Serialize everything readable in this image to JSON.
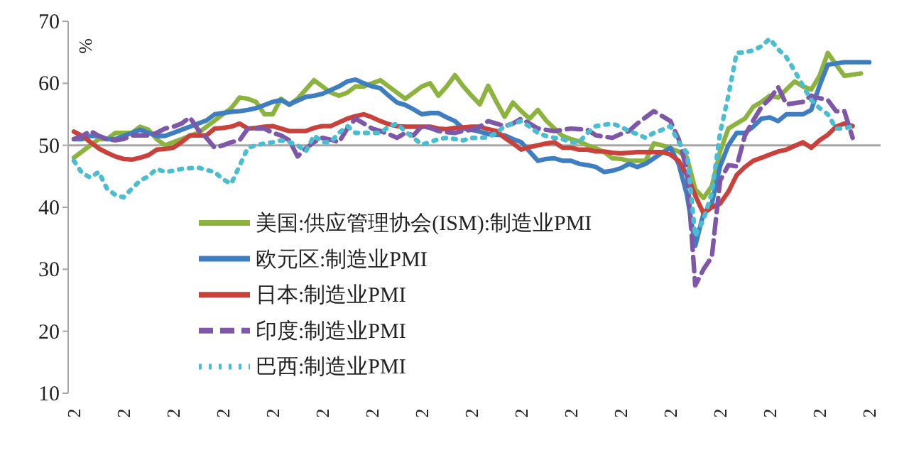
{
  "chart_data": {
    "type": "line",
    "ylabel": "%",
    "legend": "bottom left",
    "ylim": [
      10,
      70
    ],
    "yticks": [
      10,
      20,
      30,
      40,
      50,
      60,
      70
    ],
    "ref_lines": [
      {
        "axis": "y",
        "value": 50,
        "color": "#a6a6a6"
      }
    ],
    "categories": [
      "2",
      null,
      null,
      null,
      null,
      null,
      "2",
      null,
      null,
      null,
      null,
      null,
      "2",
      null,
      null,
      null,
      null,
      null,
      "2",
      null,
      null,
      null,
      null,
      null,
      "2",
      null,
      null,
      null,
      null,
      null,
      "2",
      null,
      null,
      null,
      null,
      null,
      "2",
      null,
      null,
      null,
      null,
      null,
      "2",
      null,
      null,
      null,
      null,
      null,
      "2",
      null,
      null,
      null,
      null,
      null,
      "2",
      null,
      null,
      null,
      null,
      null,
      "2",
      null,
      null,
      null,
      null,
      null,
      "2",
      null,
      null,
      null,
      null,
      null,
      "2",
      null,
      null,
      null,
      null,
      null,
      "2",
      null,
      null,
      null,
      null,
      null,
      "2",
      null,
      null,
      null,
      null,
      null,
      "2",
      null,
      null,
      null,
      null,
      null,
      "2"
    ],
    "series": [
      {
        "name": "美国:供应管理协会(ISM):制造业PMI",
        "color": "#8db33f",
        "line_style": "solid",
        "values": [
          48,
          49,
          50,
          51,
          51,
          52,
          52,
          52,
          53,
          52.5,
          51,
          50,
          50.5,
          51,
          51.5,
          52,
          53,
          54,
          55,
          56,
          57.7,
          57.5,
          57,
          55,
          55,
          57.5,
          56.5,
          57.5,
          59,
          60.5,
          59.5,
          58.5,
          58,
          58.5,
          59.5,
          59.5,
          60,
          60.5,
          59.5,
          58.5,
          57.5,
          58.5,
          59.5,
          60,
          58,
          59.5,
          61.3,
          59.5,
          58,
          56.6,
          59.6,
          57,
          54.6,
          56.9,
          55.5,
          54.3,
          55.7,
          54,
          52.7,
          51.5,
          51,
          50.6,
          50,
          49.5,
          48.9,
          47.9,
          47.8,
          47.5,
          47.5,
          47.5,
          50.3,
          50,
          49.5,
          49,
          48,
          42.9,
          41.5,
          43.4,
          49,
          52.7,
          53.5,
          54.3,
          56.2,
          57,
          58,
          57.7,
          59,
          60.3,
          59.5,
          59,
          61.2,
          64.9,
          63,
          61.2,
          61.4,
          61.6,
          null
        ]
      },
      {
        "name": "欧元区:制造业PMI",
        "color": "#3f7dc1",
        "line_style": "solid",
        "values": [
          51,
          51,
          51.5,
          51.5,
          51,
          51,
          51.5,
          52,
          52.5,
          52,
          51.5,
          51.5,
          52,
          52.5,
          53,
          53.5,
          54,
          55,
          55.2,
          55.4,
          55.5,
          55.7,
          56,
          56.5,
          57,
          57.3,
          56.6,
          57.2,
          57.8,
          58,
          58.3,
          58.9,
          59.5,
          60.3,
          60.6,
          60,
          59.5,
          59.2,
          58,
          56.9,
          56.5,
          55.8,
          55,
          55.2,
          55.2,
          54.5,
          53.9,
          52.7,
          52.5,
          52.2,
          51.8,
          51.7,
          51.6,
          51,
          50.5,
          49,
          47.5,
          47.8,
          47.9,
          47.5,
          47.5,
          47,
          46.8,
          46.5,
          45.7,
          45.9,
          46.3,
          47,
          46.5,
          47,
          47.9,
          48.8,
          49.6,
          47,
          42,
          33.8,
          39,
          40.6,
          46.6,
          50,
          52,
          52,
          53,
          54.3,
          54.5,
          53.9,
          55,
          55,
          55,
          55.7,
          59.6,
          63,
          63.2,
          63.4,
          63.4,
          63.4,
          63.4
        ]
      },
      {
        "name": "日本:制造业PMI",
        "color": "#c8413a",
        "line_style": "solid",
        "values": [
          52.2,
          51.5,
          50.5,
          49.5,
          48.8,
          48.2,
          47.8,
          47.7,
          48,
          48.4,
          49.3,
          49.4,
          49.6,
          50.5,
          51.6,
          51.6,
          51.6,
          52.7,
          52.8,
          53,
          53.5,
          52.7,
          52.8,
          53,
          53.1,
          52.7,
          52.3,
          52.3,
          52.3,
          52.8,
          53.1,
          53.1,
          53.7,
          54.3,
          54.7,
          55,
          54.5,
          53.9,
          53.4,
          53.1,
          53,
          53,
          53,
          53,
          52.7,
          52.6,
          52.8,
          52.9,
          53,
          53,
          52.6,
          52.3,
          51.2,
          50.3,
          49.3,
          49.7,
          50,
          50.3,
          50.5,
          49.6,
          49.6,
          49.3,
          49.3,
          49,
          49,
          48.8,
          48.7,
          48.8,
          48.9,
          48.9,
          48.9,
          48.9,
          48.5,
          47.5,
          45.2,
          41.9,
          39,
          40,
          40.6,
          42.5,
          45.2,
          46.5,
          47.5,
          48,
          48.5,
          49,
          49.3,
          49.9,
          50.5,
          49.6,
          50.8,
          51.7,
          53,
          53.5,
          53.1,
          null,
          null
        ]
      },
      {
        "name": "印度:制造业PMI",
        "color": "#7e57a8",
        "line_style": "dashed",
        "values": [
          51,
          51.5,
          52.3,
          51.5,
          51,
          50.8,
          51,
          51.6,
          51.6,
          51.6,
          52,
          52.7,
          53,
          53.5,
          54.5,
          52.5,
          51.2,
          49.6,
          50,
          50.5,
          50.8,
          52.7,
          52.7,
          52.7,
          52,
          51.6,
          50.8,
          48.2,
          49.5,
          50.5,
          51.2,
          50.9,
          50.5,
          52.7,
          54.3,
          53.5,
          52.7,
          52.3,
          51.8,
          51.2,
          52,
          51.6,
          53.1,
          52.8,
          52.3,
          52.1,
          52,
          52.3,
          52.5,
          53,
          53.9,
          53.5,
          53.1,
          53.5,
          54.3,
          53.5,
          52.7,
          52.5,
          52.3,
          52.5,
          52.7,
          52.6,
          52.5,
          51.6,
          51.4,
          51.2,
          51.8,
          52.3,
          53.5,
          54.5,
          55.5,
          54.7,
          53.9,
          51,
          46,
          27.4,
          30,
          32,
          44.3,
          46.8,
          46.6,
          51.6,
          54,
          56.2,
          57.5,
          59.4,
          56.6,
          56.8,
          57,
          58,
          57.6,
          57.3,
          55.5,
          55.5,
          51.2,
          null,
          null
        ]
      },
      {
        "name": "巴西:制造业PMI",
        "color": "#4bbdd0",
        "line_style": "dotted",
        "values": [
          47.5,
          45.5,
          44.8,
          45.7,
          43,
          42,
          41.6,
          43,
          44.3,
          45,
          46.2,
          45.7,
          45.9,
          46.2,
          46.3,
          46.4,
          46,
          45.7,
          44.5,
          43.8,
          46.7,
          49.6,
          50,
          50.3,
          50.5,
          50.8,
          50.5,
          50,
          49,
          51.6,
          50.5,
          50.5,
          52,
          53.1,
          52,
          52,
          52,
          52,
          53,
          53.5,
          52.2,
          51.2,
          50.1,
          50.5,
          51,
          51.2,
          51,
          50.8,
          51.2,
          51.2,
          51.3,
          52,
          53.1,
          53.5,
          53.9,
          53,
          52,
          51.5,
          51.2,
          51,
          50.5,
          50.5,
          52,
          53.1,
          53.3,
          53.5,
          53,
          52.3,
          51.8,
          51.2,
          52,
          52.5,
          53.1,
          50.5,
          48.8,
          35.3,
          38,
          42.3,
          52,
          58,
          64.9,
          65,
          65.3,
          66,
          67.2,
          65.5,
          64.2,
          62,
          59.6,
          57.3,
          56,
          55,
          52.7,
          52.7,
          53.1,
          null,
          null
        ]
      }
    ]
  }
}
